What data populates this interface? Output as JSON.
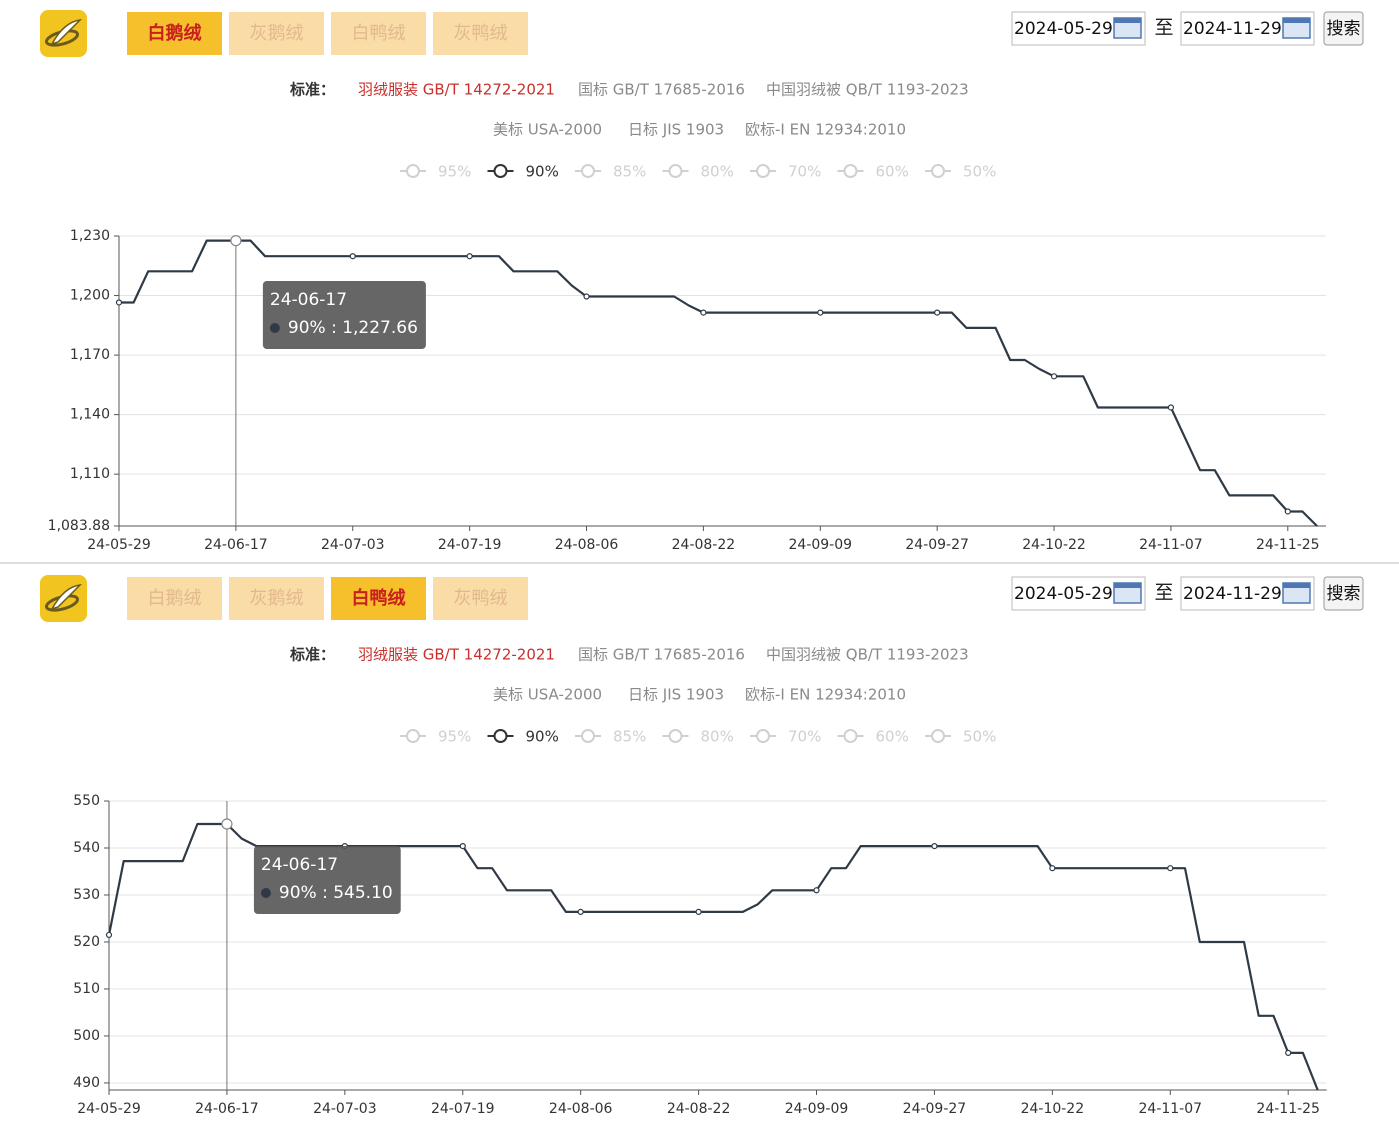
{
  "panels": [
    {
      "tabs": [
        "白鹅绒",
        "灰鹅绒",
        "白鸭绒",
        "灰鸭绒"
      ],
      "active_tab": 0,
      "date_from": "2024-05-29",
      "range_word": "至",
      "date_to": "2024-11-29",
      "search": "搜索",
      "standard_label": "标准：",
      "standards": [
        "羽绒服装 GB/T 14272-2021",
        "国标 GB/T 17685-2016",
        "中国羽绒被 QB/T 1193-2023",
        "美标 USA-2000",
        "日标 JIS 1903",
        "欧标-I EN 12934:2010"
      ],
      "active_standard": 0
    },
    {
      "tabs": [
        "白鹅绒",
        "灰鹅绒",
        "白鸭绒",
        "灰鸭绒"
      ],
      "active_tab": 2,
      "date_from": "2024-05-29",
      "range_word": "至",
      "date_to": "2024-11-29",
      "search": "搜索",
      "standard_label": "标准：",
      "standards": [
        "羽绒服装 GB/T 14272-2021",
        "国标 GB/T 17685-2016",
        "中国羽绒被 QB/T 1193-2023",
        "美标 USA-2000",
        "日标 JIS 1903",
        "欧标-I EN 12934:2010"
      ],
      "active_standard": 0
    }
  ],
  "chart_data": [
    {
      "type": "line",
      "legend": [
        "95%",
        "90%",
        "85%",
        "80%",
        "70%",
        "60%",
        "50%"
      ],
      "categories": [
        "24-05-29",
        null,
        null,
        null,
        null,
        null,
        null,
        null,
        "24-06-17",
        null,
        null,
        null,
        null,
        null,
        null,
        null,
        "24-07-03",
        null,
        null,
        null,
        null,
        null,
        null,
        null,
        "24-07-19",
        null,
        null,
        null,
        null,
        null,
        null,
        null,
        "24-08-06",
        null,
        null,
        null,
        null,
        null,
        null,
        null,
        "24-08-22",
        null,
        null,
        null,
        null,
        null,
        null,
        null,
        "24-09-09",
        null,
        null,
        null,
        null,
        null,
        null,
        null,
        "24-09-27",
        null,
        null,
        null,
        null,
        null,
        null,
        null,
        "24-10-22",
        null,
        null,
        null,
        null,
        null,
        null,
        null,
        "24-11-07",
        null,
        null,
        null,
        null,
        null,
        null,
        null,
        "24-11-25",
        null,
        null
      ],
      "series": [
        {
          "name": "90%",
          "color": "#2f3a46",
          "values": [
            1196.5,
            1196.5,
            1212.2,
            1212.2,
            1212.2,
            1212.2,
            1227.66,
            1227.66,
            1227.66,
            1227.66,
            1219.8,
            1219.8,
            1219.8,
            1219.8,
            1219.8,
            1219.8,
            1219.8,
            1219.8,
            1219.8,
            1219.8,
            1219.8,
            1219.8,
            1219.8,
            1219.8,
            1219.8,
            1219.8,
            1219.8,
            1212.2,
            1212.2,
            1212.2,
            1212.2,
            1205,
            1199.5,
            1199.5,
            1199.5,
            1199.5,
            1199.5,
            1199.5,
            1199.5,
            1195,
            1191.4,
            1191.4,
            1191.4,
            1191.4,
            1191.4,
            1191.4,
            1191.4,
            1191.4,
            1191.4,
            1191.4,
            1191.4,
            1191.4,
            1191.4,
            1191.4,
            1191.4,
            1191.4,
            1191.4,
            1191.4,
            1183.7,
            1183.7,
            1183.7,
            1167.5,
            1167.5,
            1163,
            1159.3,
            1159.3,
            1159.3,
            1143.6,
            1143.6,
            1143.6,
            1143.6,
            1143.6,
            1143.6,
            1127.8,
            1112,
            1112,
            1099.3,
            1099.3,
            1099.3,
            1099.3,
            1091.2,
            1091.2,
            1083.88
          ]
        }
      ],
      "ylim": [
        1083.88,
        1230
      ],
      "yticks": [
        {
          "value": 1083.88,
          "label": "1,083.88"
        },
        {
          "value": 1110,
          "label": "1,110"
        },
        {
          "value": 1140,
          "label": "1,140"
        },
        {
          "value": 1170,
          "label": "1,170"
        },
        {
          "value": 1200,
          "label": "1,200"
        },
        {
          "value": 1230,
          "label": "1,230"
        }
      ],
      "grid": true,
      "tooltip": {
        "title": "24-06-17",
        "text": "90% : 1,227.66"
      }
    },
    {
      "type": "line",
      "legend": [
        "95%",
        "90%",
        "85%",
        "80%",
        "70%",
        "60%",
        "50%"
      ],
      "categories": [
        "24-05-29",
        null,
        null,
        null,
        null,
        null,
        null,
        null,
        "24-06-17",
        null,
        null,
        null,
        null,
        null,
        null,
        null,
        "24-07-03",
        null,
        null,
        null,
        null,
        null,
        null,
        null,
        "24-07-19",
        null,
        null,
        null,
        null,
        null,
        null,
        null,
        "24-08-06",
        null,
        null,
        null,
        null,
        null,
        null,
        null,
        "24-08-22",
        null,
        null,
        null,
        null,
        null,
        null,
        null,
        "24-09-09",
        null,
        null,
        null,
        null,
        null,
        null,
        null,
        "24-09-27",
        null,
        null,
        null,
        null,
        null,
        null,
        null,
        "24-10-22",
        null,
        null,
        null,
        null,
        null,
        null,
        null,
        "24-11-07",
        null,
        null,
        null,
        null,
        null,
        null,
        null,
        "24-11-25",
        null,
        null
      ],
      "series": [
        {
          "name": "90%",
          "color": "#2f3a46",
          "values": [
            521.5,
            537.2,
            537.2,
            537.2,
            537.2,
            537.2,
            545.1,
            545.1,
            545.1,
            542,
            540.4,
            540.4,
            540.4,
            540.4,
            540.4,
            540.4,
            540.4,
            540.4,
            540.4,
            540.4,
            540.4,
            540.4,
            540.4,
            540.4,
            540.4,
            535.7,
            535.7,
            531,
            531,
            531,
            531,
            526.4,
            526.4,
            526.4,
            526.4,
            526.4,
            526.4,
            526.4,
            526.4,
            526.4,
            526.4,
            526.4,
            526.4,
            526.4,
            528,
            531,
            531,
            531,
            531,
            535.7,
            535.7,
            540.4,
            540.4,
            540.4,
            540.4,
            540.4,
            540.4,
            540.4,
            540.4,
            540.4,
            540.4,
            540.4,
            540.4,
            540.4,
            535.7,
            535.7,
            535.7,
            535.7,
            535.7,
            535.7,
            535.7,
            535.7,
            535.7,
            535.7,
            520,
            520,
            520,
            520,
            504.3,
            504.3,
            496.4,
            496.4,
            488.5
          ]
        }
      ],
      "ylim": [
        488.5,
        550
      ],
      "yticks": [
        490,
        500,
        510,
        520,
        530,
        540,
        550
      ],
      "grid": true,
      "tooltip": {
        "title": "24-06-17",
        "text": "90% : 545.10"
      }
    }
  ]
}
